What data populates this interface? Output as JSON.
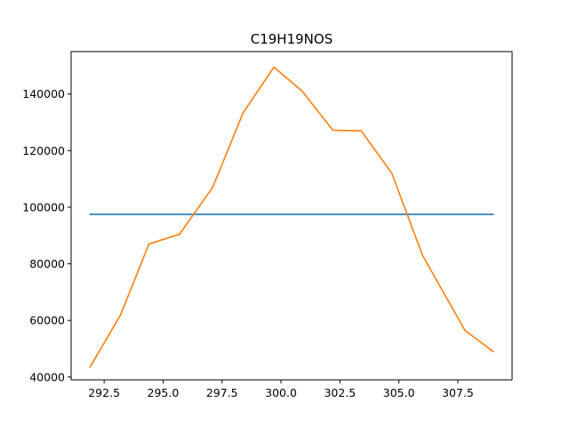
{
  "chart_data": {
    "type": "line",
    "title": "C19H19NOS",
    "xlabel": "",
    "ylabel": "",
    "xlim": [
      291.1,
      309.8
    ],
    "ylim": [
      39000,
      155000
    ],
    "grid": false,
    "x_ticks": [
      292.5,
      295.0,
      297.5,
      300.0,
      302.5,
      305.0,
      307.5
    ],
    "x_tick_labels": [
      "292.5",
      "295.0",
      "297.5",
      "300.0",
      "302.5",
      "305.0",
      "307.5"
    ],
    "y_ticks": [
      40000,
      60000,
      80000,
      100000,
      120000,
      140000
    ],
    "y_tick_labels": [
      "40000",
      "60000",
      "80000",
      "100000",
      "120000",
      "140000"
    ],
    "series": [
      {
        "color": "#1f77b4",
        "x": [
          291.9,
          309.0
        ],
        "y": [
          97500,
          97500
        ]
      },
      {
        "color": "#ff7f0e",
        "x": [
          291.9,
          293.2,
          294.4,
          295.7,
          297.1,
          298.4,
          299.7,
          300.9,
          302.2,
          303.4,
          304.7,
          306.0,
          307.8,
          309.0
        ],
        "y": [
          43500,
          62000,
          87000,
          90500,
          107000,
          133500,
          149500,
          141000,
          127200,
          127000,
          112000,
          83000,
          56500,
          49000
        ]
      }
    ]
  }
}
